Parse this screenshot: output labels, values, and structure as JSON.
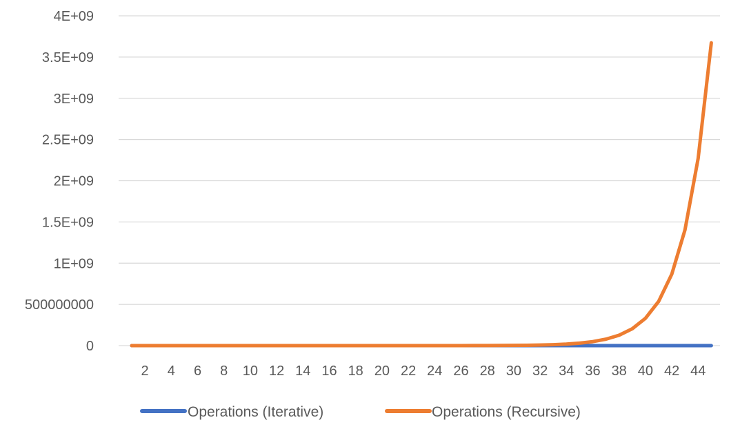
{
  "chart_data": {
    "type": "line",
    "title": "",
    "xlabel": "",
    "ylabel": "",
    "x": [
      1,
      2,
      3,
      4,
      5,
      6,
      7,
      8,
      9,
      10,
      11,
      12,
      13,
      14,
      15,
      16,
      17,
      18,
      19,
      20,
      21,
      22,
      23,
      24,
      25,
      26,
      27,
      28,
      29,
      30,
      31,
      32,
      33,
      34,
      35,
      36,
      37,
      38,
      39,
      40,
      41,
      42,
      43,
      44,
      45
    ],
    "x_tick_labels": [
      "2",
      "4",
      "6",
      "8",
      "10",
      "12",
      "14",
      "16",
      "18",
      "20",
      "22",
      "24",
      "26",
      "28",
      "30",
      "32",
      "34",
      "36",
      "38",
      "40",
      "42",
      "44"
    ],
    "y_tick_labels": [
      "0",
      "500000000",
      "1E+09",
      "1.5E+09",
      "2E+09",
      "2.5E+09",
      "3E+09",
      "3.5E+09",
      "4E+09"
    ],
    "ylim": [
      0,
      4000000000
    ],
    "grid": true,
    "legend_position": "bottom",
    "series": [
      {
        "name": "Operations (Iterative)",
        "color": "#4472c4",
        "values": [
          1,
          2,
          3,
          4,
          5,
          6,
          7,
          8,
          9,
          10,
          11,
          12,
          13,
          14,
          15,
          16,
          17,
          18,
          19,
          20,
          21,
          22,
          23,
          24,
          25,
          26,
          27,
          28,
          29,
          30,
          31,
          32,
          33,
          34,
          35,
          36,
          37,
          38,
          39,
          40,
          41,
          42,
          43,
          44,
          45
        ]
      },
      {
        "name": "Operations (Recursive)",
        "color": "#ed7d31",
        "values": [
          1,
          3,
          5,
          9,
          15,
          25,
          41,
          67,
          109,
          177,
          287,
          465,
          753,
          1219,
          1973,
          3193,
          5167,
          8361,
          13529,
          21891,
          35421,
          57313,
          92735,
          150049,
          242785,
          392835,
          635621,
          1028457,
          1664079,
          2692537,
          4356617,
          7049155,
          11405773,
          18454929,
          29860703,
          48315633,
          78176337,
          126491971,
          204668309,
          331160281,
          535828591,
          866988873,
          1402817465,
          2269806339,
          3672623805
        ]
      }
    ]
  }
}
